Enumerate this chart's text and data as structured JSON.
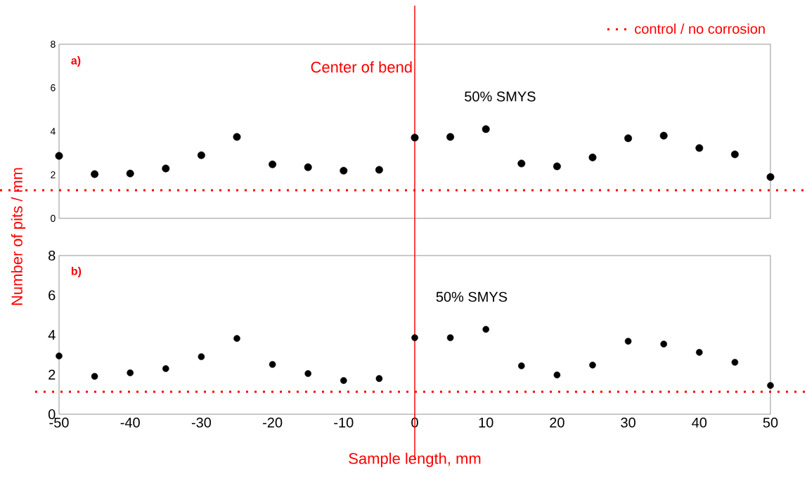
{
  "chart_data": [
    {
      "type": "scatter",
      "x": [
        -50,
        -45,
        -40,
        -35,
        -30,
        -25,
        -20,
        -15,
        -10,
        -5,
        0,
        5,
        10,
        15,
        20,
        25,
        30,
        35,
        40,
        45,
        50
      ],
      "values": [
        2.87,
        2.03,
        2.06,
        2.29,
        2.9,
        3.74,
        2.48,
        2.35,
        2.19,
        2.23,
        3.71,
        3.74,
        4.1,
        2.52,
        2.39,
        2.8,
        3.68,
        3.8,
        3.23,
        2.94,
        1.9
      ],
      "color": "#000000",
      "xlim": [
        -50,
        50
      ],
      "xticks": [
        -50,
        -40,
        -30,
        -20,
        -10,
        0,
        10,
        20,
        30,
        40,
        50
      ],
      "ylim": [
        0,
        8
      ],
      "yticks": [
        0,
        2,
        4,
        6,
        8
      ],
      "tick_labels": "y",
      "legend": "top right",
      "ref_lines": [
        {
          "axis": "x",
          "value": 0,
          "label": "Center of bend",
          "color": "#ff0000",
          "line_style": "solid"
        },
        {
          "axis": "y",
          "value": 1.29,
          "label": "control / no corrosion",
          "color": "#ff0000",
          "line_style": "dotted"
        }
      ],
      "annotations": [
        "a)",
        "50% SMYS"
      ]
    },
    {
      "type": "scatter",
      "x": [
        -50,
        -45,
        -40,
        -35,
        -30,
        -25,
        -20,
        -15,
        -10,
        -5,
        0,
        5,
        10,
        15,
        20,
        25,
        30,
        35,
        40,
        45,
        50
      ],
      "values": [
        2.94,
        1.91,
        2.09,
        2.3,
        2.9,
        3.82,
        2.51,
        2.05,
        1.7,
        1.8,
        3.86,
        3.86,
        4.28,
        2.44,
        1.98,
        2.48,
        3.68,
        3.54,
        3.12,
        2.62,
        1.45
      ],
      "color": "#000000",
      "xlim": [
        -50,
        50
      ],
      "xticks": [
        -50,
        -40,
        -30,
        -20,
        -10,
        0,
        10,
        20,
        30,
        40,
        50
      ],
      "ylim": [
        0,
        8
      ],
      "yticks": [
        0,
        2,
        4,
        6,
        8
      ],
      "xlabel": "Sample length, mm",
      "ylabel": "Number of pits / mm",
      "ref_lines": [
        {
          "axis": "x",
          "value": 0,
          "color": "#ff0000",
          "line_style": "solid"
        },
        {
          "axis": "y",
          "value": 1.13,
          "color": "#ff0000",
          "line_style": "dotted"
        }
      ],
      "annotations": [
        "b)",
        "50% SMYS"
      ]
    }
  ]
}
